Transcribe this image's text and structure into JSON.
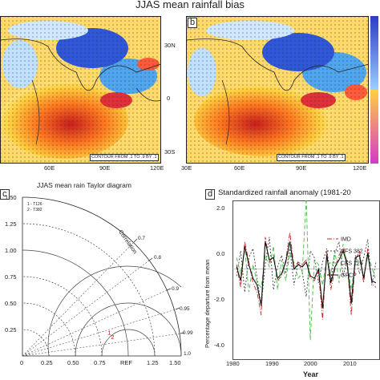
{
  "figure": {
    "title": "JJAS mean rainfall bias",
    "colorbar_colors": [
      "#2b3cc4",
      "#d43ac8"
    ]
  },
  "map_panel_a": {
    "lat_labels": [
      "30N",
      "0",
      "30S"
    ],
    "lon_labels": [
      "60E",
      "90E",
      "120E"
    ],
    "contour_note": "CONTOUR FROM .1 TO .9 BY .1"
  },
  "map_panel_b": {
    "label": "b",
    "lon_labels": [
      "30E",
      "60E",
      "90E",
      "120E"
    ],
    "contour_note": "CONTOUR FROM .1 TO .9 BY .1"
  },
  "taylor": {
    "title": "JJAS mean rain Taylor diagram",
    "label": "c",
    "legend": [
      "1 - T126",
      "2 - T382"
    ],
    "corr_axis_label": "Correlation",
    "corr_labels": [
      "0.7",
      "0.8",
      "0.9",
      "0.95",
      "0.99",
      "1.0"
    ],
    "y_ticks": [
      "1.50",
      "1.25",
      "1.00",
      "0.75",
      "0.50",
      "0.25"
    ],
    "x_ticks": [
      "0",
      "0.25",
      "0.50",
      "0.75",
      "REF",
      "1.25",
      "1.50"
    ],
    "points": [
      {
        "label": "1",
        "std": 0.83,
        "corr": 0.97,
        "color": "#cc0000"
      },
      {
        "label": "2",
        "std": 0.82,
        "corr": 0.975,
        "color": "#cc0000"
      }
    ]
  },
  "anomaly": {
    "label": "d",
    "title": "Standardized rainfall anomaly (1981-20",
    "ylabel": "Percentage departure from mean",
    "xlabel": "Year",
    "y_ticks": [
      "2.0",
      "0.0",
      "-2.0",
      "-4.0"
    ],
    "x_ticks": [
      "1980",
      "1990",
      "2000",
      "2010"
    ],
    "legend": [
      "IMD",
      "CFS 382",
      "CFS 126",
      "GPCP"
    ]
  },
  "chart_data": {
    "type": "line",
    "title": "Standardized rainfall anomaly (1981-20",
    "xlabel": "Year",
    "ylabel": "Percentage departure from mean",
    "ylim": [
      -4.0,
      3.0
    ],
    "xlim": [
      1980,
      2016
    ],
    "x": [
      1981,
      1982,
      1983,
      1984,
      1985,
      1986,
      1987,
      1988,
      1989,
      1990,
      1991,
      1992,
      1993,
      1994,
      1995,
      1996,
      1997,
      1998,
      1999,
      2000,
      2001,
      2002,
      2003,
      2004,
      2005,
      2006,
      2007,
      2008,
      2009,
      2010,
      2011,
      2012,
      2013,
      2014,
      2015
    ],
    "series": [
      {
        "name": "IMD",
        "color": "#cc2222",
        "dash": "6,2,1,2",
        "values": [
          0.2,
          -0.8,
          1.2,
          0.3,
          -0.6,
          -1.0,
          -2.0,
          1.4,
          0.3,
          0.6,
          -0.5,
          -0.3,
          0.4,
          1.6,
          0.1,
          0.3,
          0.2,
          0.4,
          -0.4,
          -0.5,
          -0.1,
          -2.2,
          0.8,
          -0.9,
          0.0,
          0.6,
          0.9,
          0.3,
          -2.0,
          0.4,
          0.8,
          -0.6,
          0.9,
          -0.6,
          -0.8
        ]
      },
      {
        "name": "CFS 382",
        "color": "#444444",
        "dash": "2,2",
        "values": [
          -0.3,
          0.8,
          -1.0,
          0.5,
          0.9,
          -0.4,
          -1.6,
          0.2,
          1.4,
          -0.9,
          0.1,
          0.6,
          -0.2,
          0.9,
          -0.7,
          0.3,
          -0.1,
          -1.2,
          0.8,
          0.5,
          -0.6,
          0.3,
          0.9,
          -0.5,
          0.7,
          1.2,
          -0.3,
          0.4,
          -1.4,
          0.6,
          -0.2,
          0.5,
          1.3,
          -0.7,
          0.3
        ]
      },
      {
        "name": "CFS 126",
        "color": "#44bb44",
        "dash": "5,3",
        "values": [
          0.5,
          -0.2,
          0.9,
          -1.0,
          0.2,
          -0.6,
          -0.8,
          0.6,
          0.1,
          1.0,
          -0.9,
          0.4,
          -0.5,
          0.7,
          0.3,
          -0.4,
          -0.2,
          3.1,
          -3.1,
          0.4,
          0.2,
          -0.7,
          0.5,
          -0.2,
          0.8,
          -0.6,
          1.1,
          0.2,
          -0.9,
          0.3,
          0.5,
          -0.4,
          0.6,
          0.1,
          -0.5
        ]
      },
      {
        "name": "GPCP",
        "color": "#111111",
        "dash": "",
        "values": [
          0.1,
          -0.5,
          1.0,
          0.2,
          -0.4,
          -0.7,
          -1.6,
          1.2,
          0.4,
          0.5,
          -0.4,
          -0.2,
          0.3,
          1.2,
          0.0,
          0.2,
          0.1,
          0.3,
          -0.3,
          -0.4,
          0.0,
          -1.7,
          0.6,
          -0.6,
          0.1,
          0.4,
          0.8,
          0.2,
          -1.5,
          0.5,
          0.6,
          -0.4,
          0.7,
          -0.5,
          -0.6
        ]
      }
    ]
  }
}
